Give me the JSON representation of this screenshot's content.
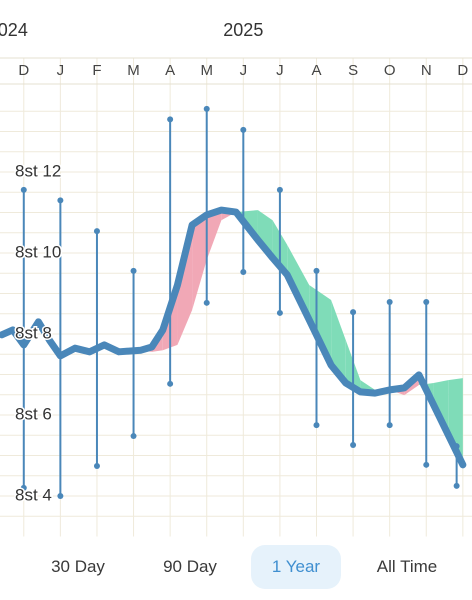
{
  "chart_data": {
    "type": "line",
    "year_labels": [
      {
        "x": -0.3,
        "label": "024"
      },
      {
        "x": 6.0,
        "label": "2025"
      }
    ],
    "xlim": [
      -0.65,
      12.25
    ],
    "ylim": [
      115,
      126
    ],
    "xticks": [
      {
        "value": 0,
        "label": "D"
      },
      {
        "value": 1,
        "label": "J"
      },
      {
        "value": 2,
        "label": "F"
      },
      {
        "value": 3,
        "label": "M"
      },
      {
        "value": 4,
        "label": "A"
      },
      {
        "value": 5,
        "label": "M"
      },
      {
        "value": 6,
        "label": "J"
      },
      {
        "value": 7,
        "label": "J"
      },
      {
        "value": 8,
        "label": "A"
      },
      {
        "value": 9,
        "label": "S"
      },
      {
        "value": 10,
        "label": "O"
      },
      {
        "value": 11,
        "label": "N"
      },
      {
        "value": 12,
        "label": "D"
      }
    ],
    "yticks": [
      {
        "value": 116,
        "label": "8st 4"
      },
      {
        "value": 118,
        "label": "8st 6"
      },
      {
        "value": 120,
        "label": "8st 8"
      },
      {
        "value": 122,
        "label": "8st 10"
      },
      {
        "value": 124,
        "label": "8st 12"
      }
    ],
    "ygrid": [
      115.5,
      116,
      116.5,
      117,
      117.5,
      118,
      118.5,
      119,
      119.5,
      120,
      120.5,
      121,
      121.5,
      122,
      122.5,
      123,
      123.5,
      124,
      124.5,
      125,
      125.5
    ],
    "grid": true,
    "x": [
      -0.6,
      -0.3,
      0,
      0.4,
      0.7,
      1.0,
      1.4,
      1.8,
      2.2,
      2.6,
      3.2,
      3.5,
      3.8,
      4.2,
      4.6,
      5.0,
      5.4,
      5.8,
      6.4,
      6.8,
      7.2,
      7.8,
      8.4,
      8.8,
      9.2,
      9.6,
      10.0,
      10.4,
      10.8,
      11.2,
      11.6,
      12.0
    ],
    "series": [
      {
        "color": "#4a87b9",
        "values": [
          119.98,
          120.1,
          119.73,
          120.3,
          119.85,
          119.46,
          119.65,
          119.56,
          119.73,
          119.56,
          119.6,
          119.68,
          120.1,
          121.21,
          122.69,
          122.94,
          123.06,
          123.01,
          122.32,
          121.88,
          121.46,
          120.35,
          119.23,
          118.79,
          118.57,
          118.54,
          118.62,
          118.67,
          118.99,
          118.25,
          117.51,
          116.77
        ]
      },
      {
        "color_up": "#7fdcb8",
        "color_down": "#f1a8b6",
        "values": [
          119.98,
          120.1,
          119.73,
          120.3,
          119.85,
          119.46,
          119.65,
          119.56,
          119.73,
          119.56,
          119.6,
          119.56,
          119.6,
          119.73,
          120.59,
          121.83,
          122.81,
          123.01,
          123.06,
          122.81,
          122.2,
          121.21,
          120.84,
          119.85,
          118.86,
          118.62,
          118.62,
          118.49,
          118.74,
          118.79,
          118.86,
          118.91
        ]
      }
    ],
    "ranges": {
      "color": "#4a87b9",
      "x": [
        0,
        1,
        2,
        3,
        4,
        5,
        6,
        7,
        8,
        9,
        10,
        11,
        11.83
      ],
      "min": [
        116.2,
        116.0,
        116.74,
        117.48,
        118.77,
        120.77,
        121.53,
        120.52,
        117.75,
        117.26,
        117.75,
        116.77,
        116.25
      ],
      "max": [
        123.56,
        123.3,
        122.54,
        121.56,
        125.3,
        125.56,
        125.04,
        123.56,
        121.56,
        120.54,
        120.79,
        120.79,
        117.23
      ]
    }
  },
  "tabs": [
    "30 Day",
    "90 Day",
    "1 Year",
    "All Time"
  ],
  "selected_tab": 2
}
